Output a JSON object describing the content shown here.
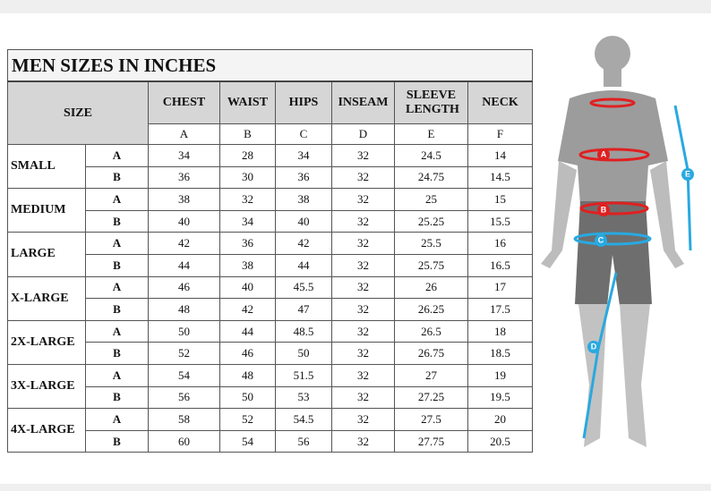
{
  "table": {
    "title": "MEN SIZES IN INCHES",
    "size_header": "SIZE",
    "columns": [
      {
        "name": "CHEST",
        "letter": "A"
      },
      {
        "name": "WAIST",
        "letter": "B"
      },
      {
        "name": "HIPS",
        "letter": "C"
      },
      {
        "name": "INSEAM",
        "letter": "D"
      },
      {
        "name": "SLEEVE LENGTH",
        "letter": "E"
      },
      {
        "name": "NECK",
        "letter": "F"
      }
    ],
    "rows": [
      {
        "size": "SMALL",
        "fits": [
          {
            "fit": "A",
            "values": [
              "34",
              "28",
              "34",
              "32",
              "24.5",
              "14"
            ]
          },
          {
            "fit": "B",
            "values": [
              "36",
              "30",
              "36",
              "32",
              "24.75",
              "14.5"
            ]
          }
        ]
      },
      {
        "size": "MEDIUM",
        "fits": [
          {
            "fit": "A",
            "values": [
              "38",
              "32",
              "38",
              "32",
              "25",
              "15"
            ]
          },
          {
            "fit": "B",
            "values": [
              "40",
              "34",
              "40",
              "32",
              "25.25",
              "15.5"
            ]
          }
        ]
      },
      {
        "size": "LARGE",
        "fits": [
          {
            "fit": "A",
            "values": [
              "42",
              "36",
              "42",
              "32",
              "25.5",
              "16"
            ]
          },
          {
            "fit": "B",
            "values": [
              "44",
              "38",
              "44",
              "32",
              "25.75",
              "16.5"
            ]
          }
        ]
      },
      {
        "size": "X-LARGE",
        "fits": [
          {
            "fit": "A",
            "values": [
              "46",
              "40",
              "45.5",
              "32",
              "26",
              "17"
            ]
          },
          {
            "fit": "B",
            "values": [
              "48",
              "42",
              "47",
              "32",
              "26.25",
              "17.5"
            ]
          }
        ]
      },
      {
        "size": "2X-LARGE",
        "fits": [
          {
            "fit": "A",
            "values": [
              "50",
              "44",
              "48.5",
              "32",
              "26.5",
              "18"
            ]
          },
          {
            "fit": "B",
            "values": [
              "52",
              "46",
              "50",
              "32",
              "26.75",
              "18.5"
            ]
          }
        ]
      },
      {
        "size": "3X-LARGE",
        "fits": [
          {
            "fit": "A",
            "values": [
              "54",
              "48",
              "51.5",
              "32",
              "27",
              "19"
            ]
          },
          {
            "fit": "B",
            "values": [
              "56",
              "50",
              "53",
              "32",
              "27.25",
              "19.5"
            ]
          }
        ]
      },
      {
        "size": "4X-LARGE",
        "fits": [
          {
            "fit": "A",
            "values": [
              "58",
              "52",
              "54.5",
              "32",
              "27.5",
              "20"
            ]
          },
          {
            "fit": "B",
            "values": [
              "60",
              "54",
              "56",
              "32",
              "27.75",
              "20.5"
            ]
          }
        ]
      }
    ]
  },
  "figure": {
    "labels": [
      "A",
      "B",
      "C",
      "D",
      "E"
    ]
  }
}
